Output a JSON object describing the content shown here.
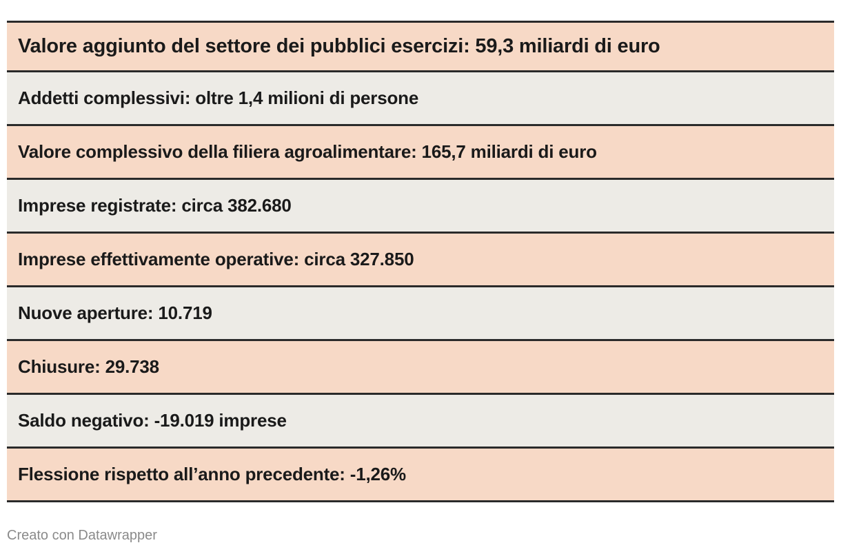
{
  "rows": [
    {
      "text": "Valore aggiunto del settore dei pubblici esercizi: 59,3 miliardi di euro",
      "color": "#f7d9c6"
    },
    {
      "text": "Addetti complessivi: oltre 1,4 milioni di persone",
      "color": "#edebe6"
    },
    {
      "text": "Valore complessivo della filiera agroalimentare: 165,7 miliardi di euro",
      "color": "#f7d9c6"
    },
    {
      "text": "Imprese registrate: circa 382.680",
      "color": "#edebe6"
    },
    {
      "text": "Imprese effettivamente operative: circa 327.850",
      "color": "#f7d9c6"
    },
    {
      "text": "Nuove aperture: 10.719",
      "color": "#edebe6"
    },
    {
      "text": "Chiusure: 29.738",
      "color": "#f7d9c6"
    },
    {
      "text": "Saldo negativo: -19.019 imprese",
      "color": "#edebe6"
    },
    {
      "text": "Flessione rispetto all’anno precedente: -1,26%",
      "color": "#f7d9c6"
    }
  ],
  "footer": {
    "credit": "Creato con Datawrapper"
  }
}
